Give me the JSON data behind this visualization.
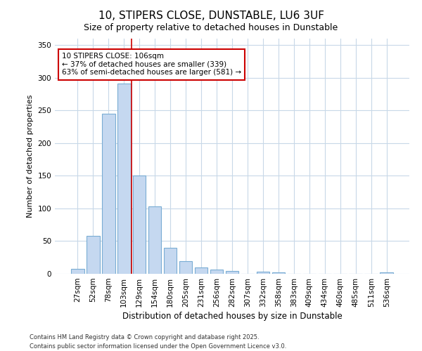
{
  "title": "10, STIPERS CLOSE, DUNSTABLE, LU6 3UF",
  "subtitle": "Size of property relative to detached houses in Dunstable",
  "xlabel": "Distribution of detached houses by size in Dunstable",
  "ylabel": "Number of detached properties",
  "categories": [
    "27sqm",
    "52sqm",
    "78sqm",
    "103sqm",
    "129sqm",
    "154sqm",
    "180sqm",
    "205sqm",
    "231sqm",
    "256sqm",
    "282sqm",
    "307sqm",
    "332sqm",
    "358sqm",
    "383sqm",
    "409sqm",
    "434sqm",
    "460sqm",
    "485sqm",
    "511sqm",
    "536sqm"
  ],
  "values": [
    7,
    58,
    245,
    291,
    150,
    103,
    40,
    19,
    10,
    6,
    4,
    0,
    3,
    2,
    0,
    0,
    0,
    0,
    0,
    0,
    2
  ],
  "bar_color": "#c5d8f0",
  "bar_edge_color": "#7aadd4",
  "background_color": "#ffffff",
  "grid_color": "#c8d8e8",
  "vline_color": "#cc0000",
  "vline_x_index": 3.5,
  "annotation_line1": "10 STIPERS CLOSE: 106sqm",
  "annotation_line2": "← 37% of detached houses are smaller (339)",
  "annotation_line3": "63% of semi-detached houses are larger (581) →",
  "annotation_box_facecolor": "#ffffff",
  "annotation_box_edgecolor": "#cc0000",
  "ylim": [
    0,
    360
  ],
  "yticks": [
    0,
    50,
    100,
    150,
    200,
    250,
    300,
    350
  ],
  "footer_line1": "Contains HM Land Registry data © Crown copyright and database right 2025.",
  "footer_line2": "Contains public sector information licensed under the Open Government Licence v3.0.",
  "figsize": [
    6.0,
    5.0
  ],
  "dpi": 100,
  "title_fontsize": 11,
  "subtitle_fontsize": 9,
  "axis_label_fontsize": 8,
  "tick_fontsize": 7.5,
  "annotation_fontsize": 7.5,
  "footer_fontsize": 6
}
